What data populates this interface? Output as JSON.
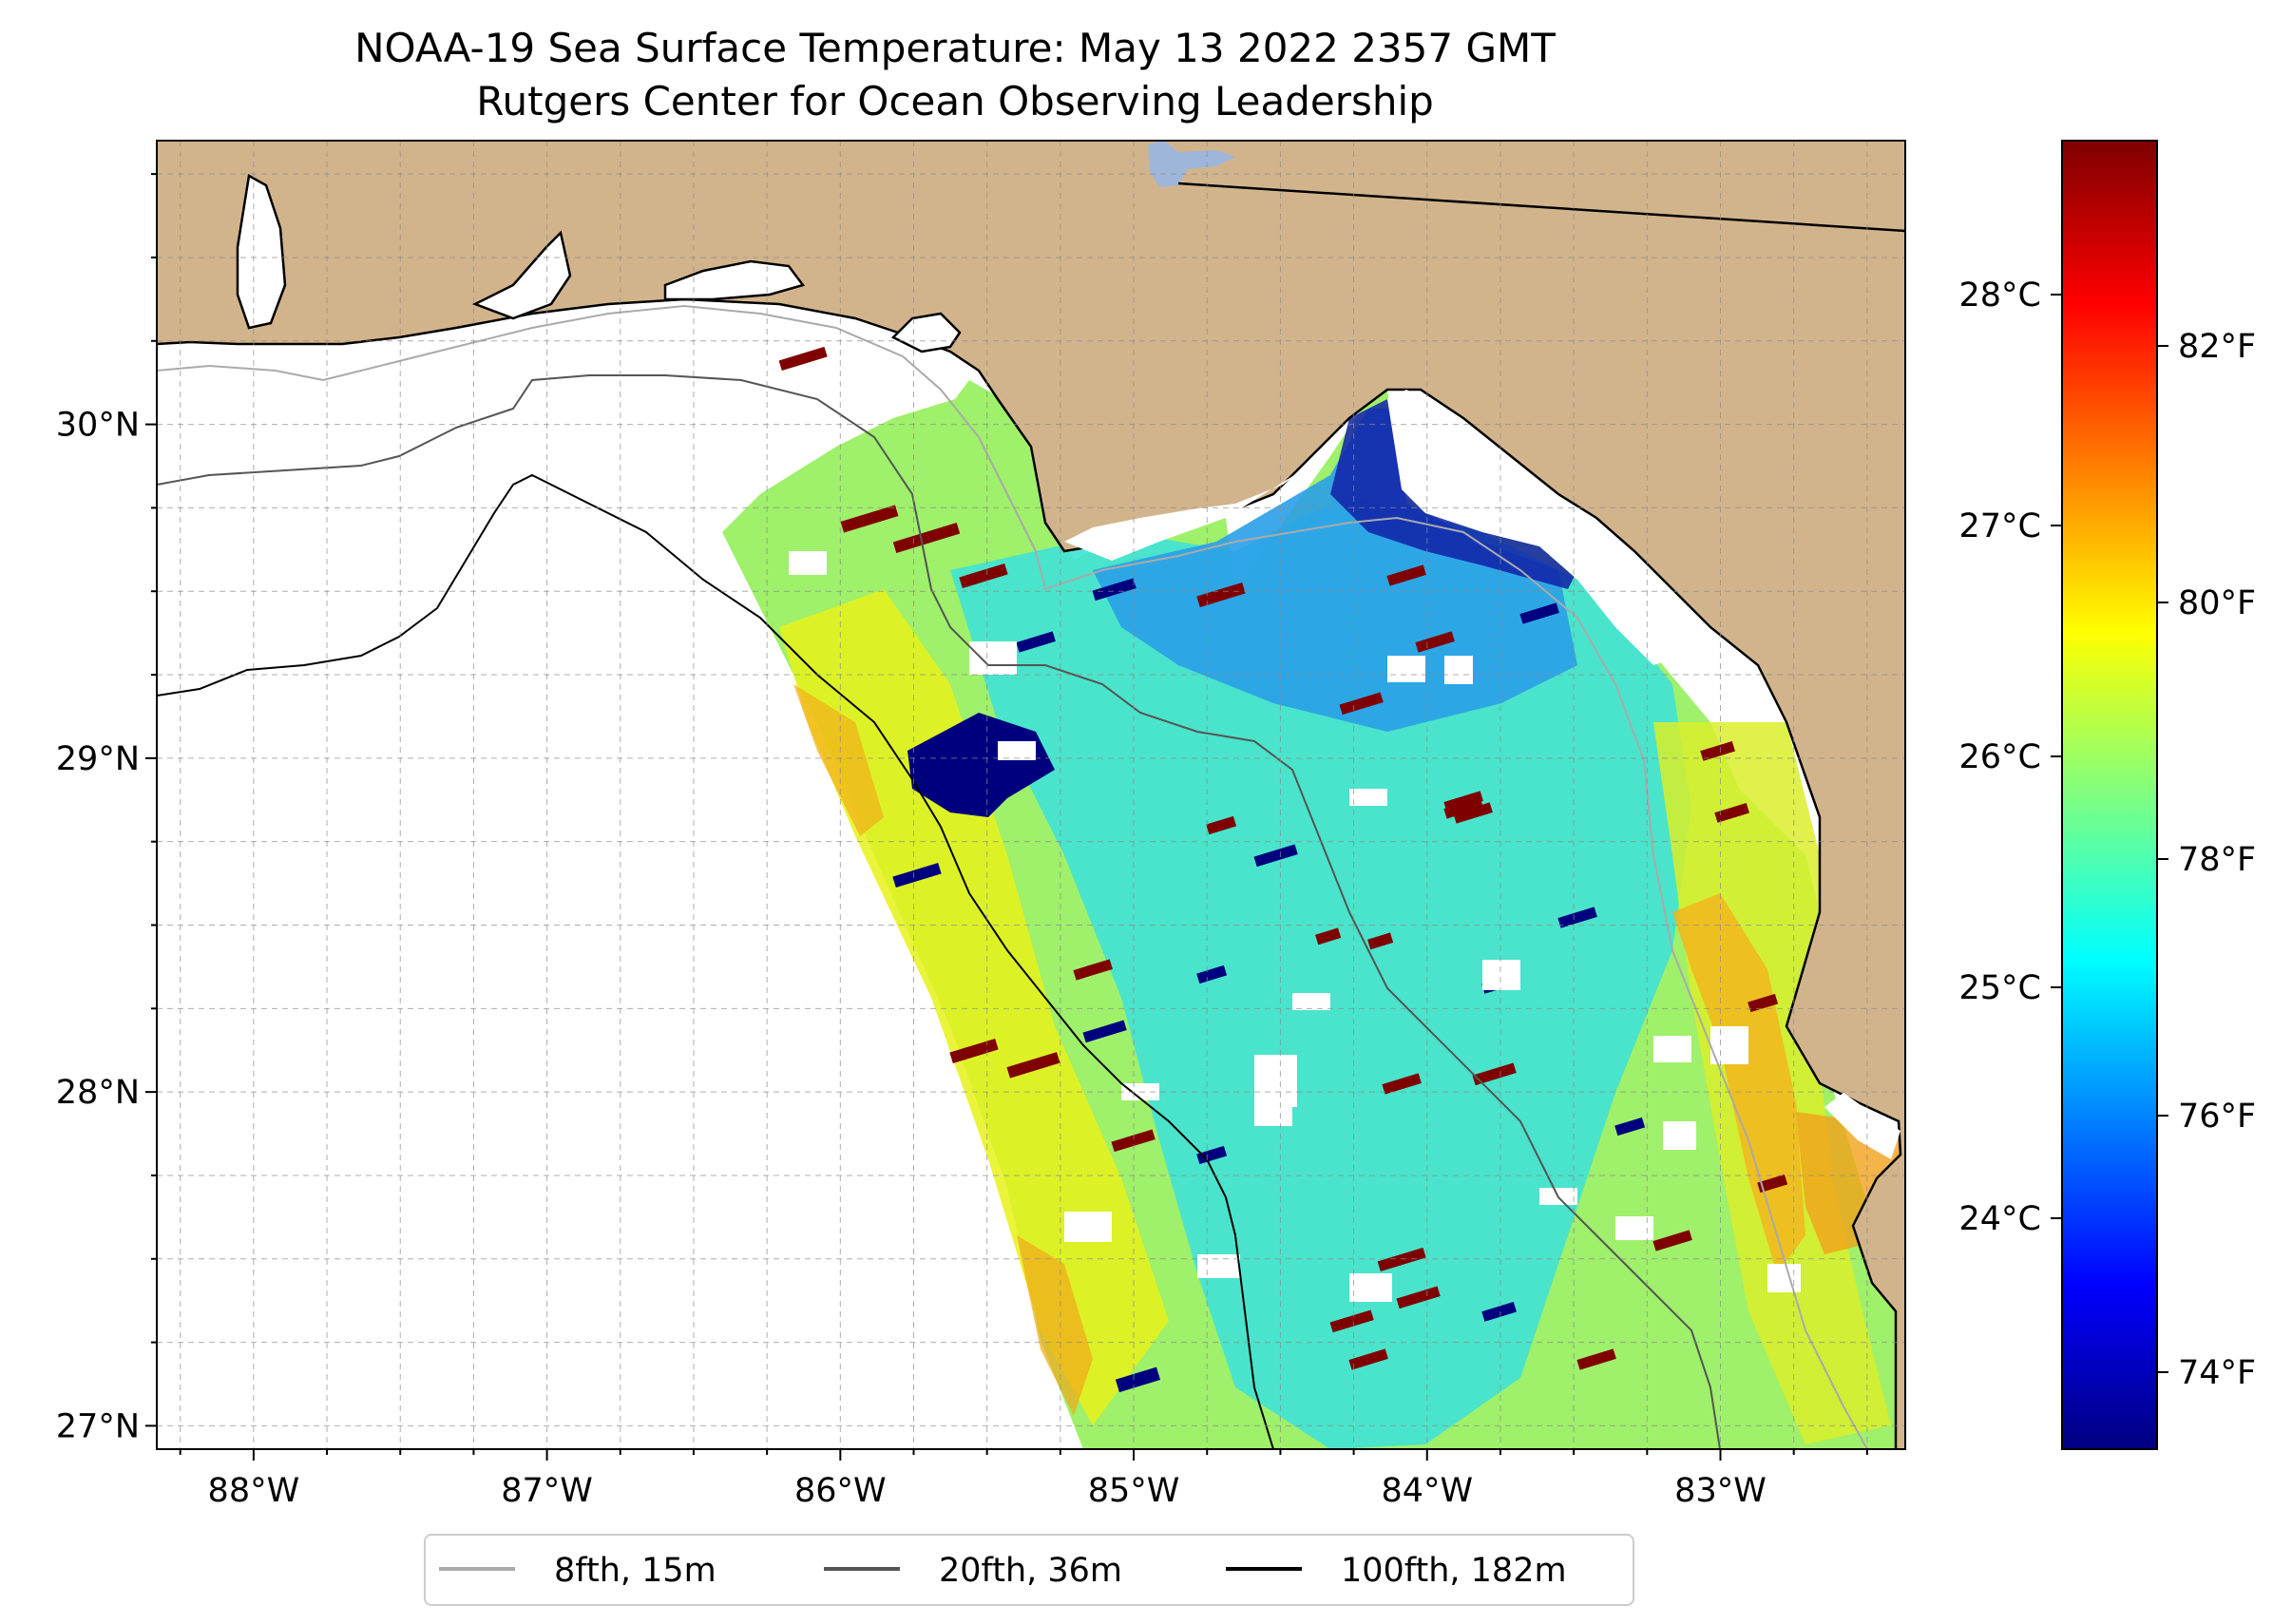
{
  "title": {
    "line1": "NOAA-19 Sea Surface Temperature: May 13 2022 2357 GMT",
    "line2": "Rutgers Center for Ocean Observing Leadership"
  },
  "map": {
    "lon_range": [
      -88.33,
      -82.37
    ],
    "lat_range": [
      26.93,
      30.85
    ],
    "lon_ticks": [
      {
        "value": -88,
        "label": "88°W"
      },
      {
        "value": -87,
        "label": "87°W"
      },
      {
        "value": -86,
        "label": "86°W"
      },
      {
        "value": -85,
        "label": "85°W"
      },
      {
        "value": -84,
        "label": "84°W"
      },
      {
        "value": -83,
        "label": "83°W"
      }
    ],
    "lat_ticks": [
      {
        "value": 27,
        "label": "27°N"
      },
      {
        "value": 28,
        "label": "28°N"
      },
      {
        "value": 29,
        "label": "29°N"
      },
      {
        "value": 30,
        "label": "30°N"
      }
    ],
    "colors": {
      "land": "#d2b48c",
      "lake": "#9fb6db",
      "no_data": "#ffffff",
      "coast": "#000000"
    }
  },
  "colorbar": {
    "celsius_ticks": [
      {
        "value": 24,
        "label": "24°C"
      },
      {
        "value": 25,
        "label": "25°C"
      },
      {
        "value": 26,
        "label": "26°C"
      },
      {
        "value": 27,
        "label": "27°C"
      },
      {
        "value": 28,
        "label": "28°C"
      }
    ],
    "fahrenheit_ticks": [
      {
        "value": 74,
        "label": "74°F"
      },
      {
        "value": 76,
        "label": "76°F"
      },
      {
        "value": 78,
        "label": "78°F"
      },
      {
        "value": 80,
        "label": "80°F"
      },
      {
        "value": 82,
        "label": "82°F"
      }
    ],
    "range_f": [
      73.4,
      83.6
    ],
    "colormap": [
      "#00007f",
      "#0000ff",
      "#007fff",
      "#00ffff",
      "#7fff7f",
      "#ffff00",
      "#ff7f00",
      "#ff0000",
      "#7f0000"
    ]
  },
  "legend": {
    "items": [
      {
        "label": "8fth, 15m",
        "color": "#aaaaaa"
      },
      {
        "label": "20fth, 36m",
        "color": "#555555"
      },
      {
        "label": "100fth, 182m",
        "color": "#000000"
      }
    ]
  }
}
